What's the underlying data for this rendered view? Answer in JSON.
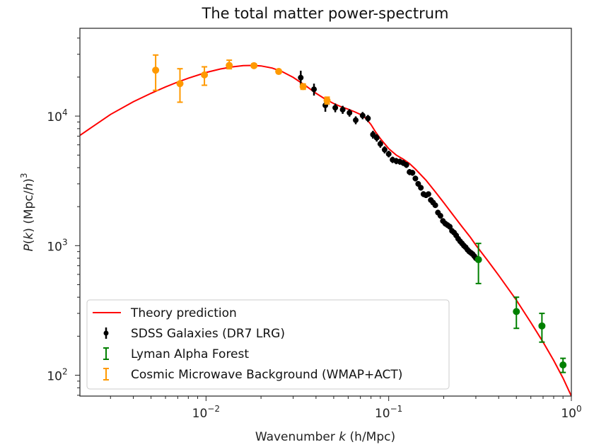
{
  "chart_data": {
    "type": "scatter",
    "title": "The total matter power-spectrum",
    "xlabel": "Wavenumber k (h/Mpc)",
    "xlabel_parts": [
      "Wavenumber ",
      "k",
      " (h/Mpc)"
    ],
    "ylabel": "P(k) (Mpc/h)^3",
    "ylabel_parts": [
      "P",
      "(",
      "k",
      ")  (Mpc/",
      "h",
      ")",
      "3"
    ],
    "xscale": "log",
    "yscale": "log",
    "xlim": [
      0.00204,
      1.0
    ],
    "ylim": [
      69,
      47600
    ],
    "grid": false,
    "x_ticks": [
      {
        "value": 0.01,
        "base": "10",
        "exp": "−2"
      },
      {
        "value": 0.1,
        "base": "10",
        "exp": "−1"
      },
      {
        "value": 1.0,
        "base": "10",
        "exp": "0"
      }
    ],
    "y_ticks": [
      {
        "value": 100,
        "base": "10",
        "exp": "2"
      },
      {
        "value": 1000,
        "base": "10",
        "exp": "3"
      },
      {
        "value": 10000,
        "base": "10",
        "exp": "4"
      }
    ],
    "legend": {
      "placement": "lower-left",
      "entries": [
        {
          "label": "Theory prediction",
          "marker": "line",
          "color": "#ff0000"
        },
        {
          "label": "SDSS Galaxies (DR7 LRG)",
          "marker": "errorbar-dot",
          "color": "#000000"
        },
        {
          "label": "Lyman Alpha Forest",
          "marker": "errorbar-cap",
          "color": "#008000"
        },
        {
          "label": "Cosmic Microwave Background (WMAP+ACT)",
          "marker": "errorbar-cap",
          "color": "#ff9900"
        }
      ]
    },
    "series": [
      {
        "name": "Theory prediction",
        "kind": "line",
        "color": "#ff0000",
        "x": [
          0.00204,
          0.003,
          0.004,
          0.005,
          0.006,
          0.007,
          0.008,
          0.01,
          0.012,
          0.014,
          0.016,
          0.018,
          0.02,
          0.023,
          0.026,
          0.03,
          0.035,
          0.04,
          0.045,
          0.05,
          0.055,
          0.06,
          0.065,
          0.07,
          0.075,
          0.08,
          0.085,
          0.09,
          0.1,
          0.11,
          0.12,
          0.13,
          0.14,
          0.16,
          0.18,
          0.2,
          0.22,
          0.25,
          0.28,
          0.3,
          0.35,
          0.4,
          0.5,
          0.6,
          0.7,
          0.8,
          0.9,
          1.0
        ],
        "y": [
          7100,
          10300,
          12900,
          15000,
          16800,
          18300,
          19600,
          21700,
          23100,
          24000,
          24500,
          24600,
          24400,
          23500,
          22100,
          19900,
          17200,
          15000,
          13500,
          12500,
          11800,
          11300,
          10800,
          10300,
          9600,
          8600,
          7500,
          6700,
          5600,
          5000,
          4650,
          4300,
          3900,
          3200,
          2600,
          2150,
          1800,
          1420,
          1160,
          1010,
          760,
          590,
          380,
          255,
          180,
          130,
          95,
          69
        ]
      },
      {
        "name": "SDSS Galaxies (DR7 LRG)",
        "kind": "errorbar",
        "color": "#000000",
        "x": [
          0.033,
          0.039,
          0.045,
          0.051,
          0.056,
          0.061,
          0.066,
          0.072,
          0.077,
          0.082,
          0.086,
          0.09,
          0.095,
          0.1,
          0.105,
          0.11,
          0.115,
          0.12,
          0.125,
          0.13,
          0.135,
          0.14,
          0.145,
          0.15,
          0.155,
          0.16,
          0.165,
          0.17,
          0.175,
          0.18,
          0.186,
          0.192,
          0.198,
          0.204,
          0.21,
          0.216,
          0.222,
          0.228,
          0.234,
          0.24,
          0.246,
          0.252,
          0.258,
          0.264,
          0.27,
          0.276,
          0.282,
          0.288,
          0.294,
          0.3
        ],
        "y": [
          19800,
          16100,
          12100,
          11600,
          11200,
          10600,
          9300,
          10100,
          9600,
          7200,
          6800,
          6100,
          5500,
          5100,
          4600,
          4500,
          4450,
          4350,
          4200,
          3700,
          3650,
          3300,
          3000,
          2800,
          2500,
          2450,
          2500,
          2250,
          2150,
          2050,
          1800,
          1700,
          1550,
          1480,
          1440,
          1400,
          1300,
          1260,
          1200,
          1130,
          1080,
          1040,
          1000,
          970,
          930,
          900,
          880,
          860,
          830,
          800
        ],
        "yerr": [
          2600,
          1700,
          1300,
          900,
          800,
          700,
          650,
          650,
          600,
          500,
          450,
          400,
          350,
          300,
          260,
          250,
          240,
          230,
          220,
          200,
          190,
          170,
          150,
          140,
          130,
          120,
          120,
          110,
          100,
          95,
          90,
          85,
          80,
          75,
          72,
          70,
          65,
          62,
          60,
          58,
          55,
          52,
          50,
          48,
          46,
          45,
          44,
          43,
          42,
          40
        ]
      },
      {
        "name": "Lyman Alpha Forest",
        "kind": "errorbar",
        "color": "#008000",
        "x": [
          0.31,
          0.5,
          0.69,
          0.9
        ],
        "y": [
          780,
          310,
          240,
          120
        ],
        "yerr_low": [
          270,
          80,
          60,
          15
        ],
        "yerr_high": [
          260,
          90,
          60,
          15
        ]
      },
      {
        "name": "Cosmic Microwave Background (WMAP+ACT)",
        "kind": "errorbar",
        "color": "#ff9900",
        "x": [
          0.0053,
          0.0072,
          0.0098,
          0.0134,
          0.0183,
          0.025,
          0.034,
          0.046
        ],
        "y": [
          22600,
          17800,
          20800,
          24600,
          24500,
          22100,
          16900,
          13200
        ],
        "yerr_low": [
          6800,
          5000,
          3500,
          1400,
          600,
          400,
          800,
          800
        ],
        "yerr_high": [
          7000,
          5400,
          3200,
          2400,
          800,
          400,
          800,
          800
        ]
      }
    ]
  }
}
